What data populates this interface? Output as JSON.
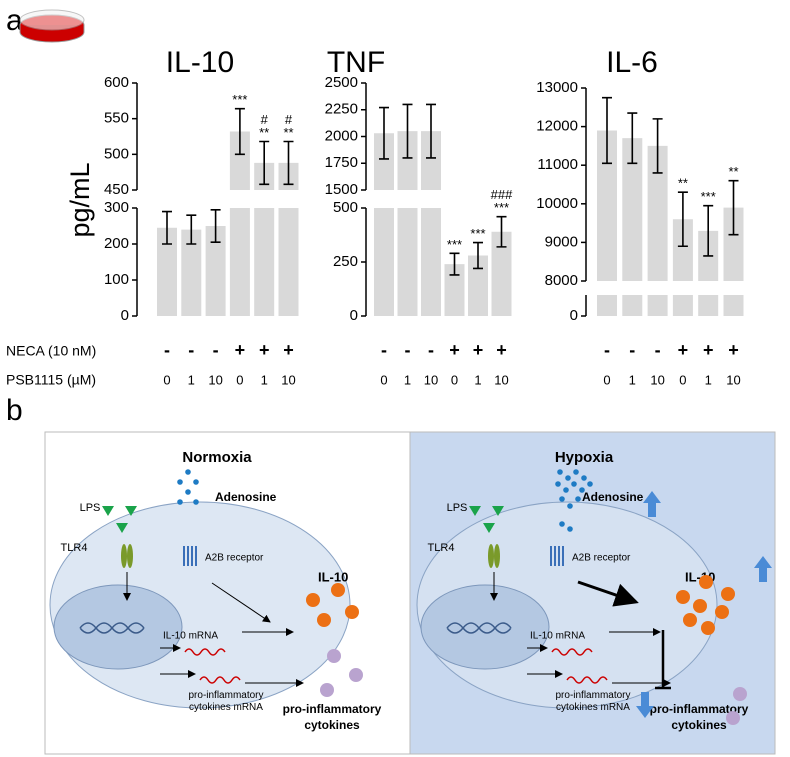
{
  "panel_a": {
    "label": "a",
    "ylabel": "pg/mL",
    "row_labels": [
      "NECA (10 nM)",
      "PSB1115 (µM)"
    ]
  },
  "chart_data": [
    {
      "type": "bar",
      "title": "IL-10",
      "color": "#d9d9d9",
      "neca": [
        "-",
        "-",
        "-",
        "+",
        "+",
        "+"
      ],
      "psb": [
        "0",
        "1",
        "10",
        "0",
        "1",
        "10"
      ],
      "values": [
        245,
        240,
        250,
        532,
        488,
        488
      ],
      "errors": [
        45,
        40,
        45,
        32,
        30,
        30
      ],
      "annotations": [
        [],
        [],
        [],
        [
          "***"
        ],
        [
          "#",
          "**"
        ],
        [
          "#",
          "**"
        ]
      ],
      "ylim_lower": [
        0,
        300
      ],
      "yticks_lower": [
        0,
        100,
        200,
        300
      ],
      "ylim_upper": [
        450,
        600
      ],
      "yticks_upper": [
        450,
        500,
        550,
        600
      ]
    },
    {
      "type": "bar",
      "title": "TNF",
      "color": "#d9d9d9",
      "neca": [
        "-",
        "-",
        "-",
        "+",
        "+",
        "+"
      ],
      "psb": [
        "0",
        "1",
        "10",
        "0",
        "1",
        "10"
      ],
      "values": [
        2030,
        2050,
        2050,
        240,
        280,
        390
      ],
      "errors": [
        240,
        250,
        250,
        50,
        60,
        70
      ],
      "annotations": [
        [],
        [],
        [],
        [
          "***"
        ],
        [
          "***"
        ],
        [
          "###",
          "***"
        ]
      ],
      "ylim_lower": [
        0,
        500
      ],
      "yticks_lower": [
        0,
        250,
        500
      ],
      "ylim_upper": [
        1500,
        2500
      ],
      "yticks_upper": [
        1500,
        1750,
        2000,
        2250,
        2500
      ]
    },
    {
      "type": "bar",
      "title": "IL-6",
      "color": "#d9d9d9",
      "neca": [
        "-",
        "-",
        "-",
        "+",
        "+",
        "+"
      ],
      "psb": [
        "0",
        "1",
        "10",
        "0",
        "1",
        "10"
      ],
      "values": [
        11900,
        11700,
        11500,
        9600,
        9300,
        9900
      ],
      "errors": [
        850,
        650,
        700,
        700,
        650,
        700
      ],
      "annotations": [
        [],
        [],
        [],
        [
          "**"
        ],
        [
          "***"
        ],
        [
          "**"
        ]
      ],
      "ylim_lower": [
        0,
        1000
      ],
      "yticks_lower": [
        0
      ],
      "ylim_upper": [
        8000,
        13000
      ],
      "yticks_upper": [
        8000,
        9000,
        10000,
        11000,
        12000,
        13000
      ]
    }
  ],
  "panel_b": {
    "label": "b",
    "panels": [
      {
        "title": "Normoxia",
        "lps": "LPS",
        "tlr4": "TLR4",
        "adenosine": "Adenosine",
        "receptor": "A2B receptor",
        "il10": "IL-10",
        "il10_mrna": "IL-10 mRNA",
        "cyt_mrna": [
          "pro-inflammatory",
          "cytokines mRNA"
        ],
        "cytokines": [
          "pro-inflammatory",
          "cytokines"
        ]
      },
      {
        "title": "Hypoxia",
        "lps": "LPS",
        "tlr4": "TLR4",
        "adenosine": "Adenosine",
        "receptor": "A2B receptor",
        "il10": "IL-10",
        "il10_mrna": "IL-10 mRNA",
        "cyt_mrna": [
          "pro-inflammatory",
          "cytokines mRNA"
        ],
        "cytokines": [
          "pro-inflammatory",
          "cytokines"
        ]
      }
    ]
  }
}
